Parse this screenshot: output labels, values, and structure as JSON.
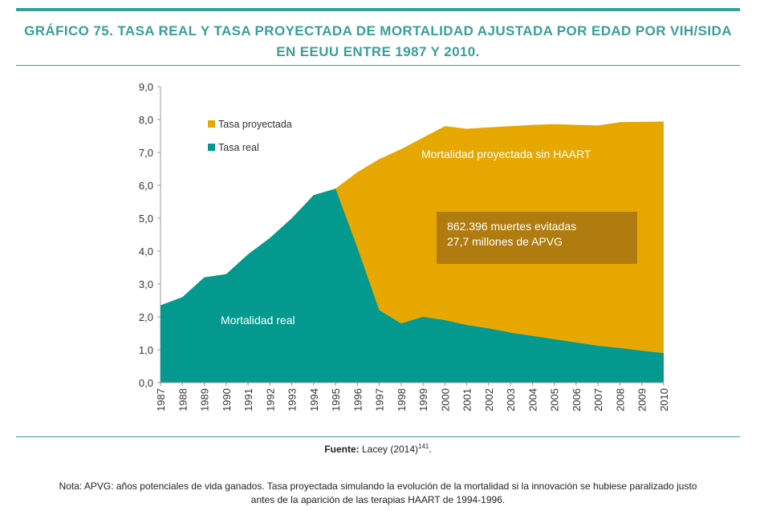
{
  "header": {
    "title_line1": "GRÁFICO 75. TASA REAL Y TASA PROYECTADA DE MORTALIDAD AJUSTADA POR EDAD POR VIH/SIDA",
    "title_line2": "EN EEUU ENTRE 1987 Y 2010."
  },
  "colors": {
    "accent": "#3a9e98",
    "real": "#03998f",
    "projected": "#e6a800",
    "callout": "#b07c10"
  },
  "chart_data": {
    "type": "area",
    "x": [
      "1987",
      "1988",
      "1989",
      "1990",
      "1991",
      "1992",
      "1993",
      "1994",
      "1995",
      "1996",
      "1997",
      "1998",
      "1999",
      "2000",
      "2001",
      "2002",
      "2003",
      "2004",
      "2005",
      "2006",
      "2007",
      "2008",
      "2009",
      "2010"
    ],
    "series": [
      {
        "name": "Tasa proyectada",
        "values": [
          2.35,
          2.6,
          3.2,
          3.3,
          3.9,
          4.4,
          5.0,
          5.7,
          5.9,
          6.4,
          6.8,
          7.1,
          7.45,
          7.8,
          7.72,
          7.76,
          7.8,
          7.84,
          7.86,
          7.84,
          7.82,
          7.92,
          7.93,
          7.94
        ]
      },
      {
        "name": "Tasa real",
        "values": [
          2.35,
          2.6,
          3.2,
          3.3,
          3.9,
          4.4,
          5.0,
          5.7,
          5.9,
          4.1,
          2.2,
          1.8,
          2.0,
          1.9,
          1.75,
          1.65,
          1.52,
          1.42,
          1.32,
          1.22,
          1.12,
          1.05,
          0.97,
          0.9
        ]
      }
    ],
    "ylim": [
      0,
      9
    ],
    "yticks": [
      "0,0",
      "1,0",
      "2,0",
      "3,0",
      "4,0",
      "5,0",
      "6,0",
      "7,0",
      "8,0",
      "9,0"
    ],
    "legend_position": "top-left",
    "annotations": {
      "projected_label": "Mortalidad proyectada sin HAART",
      "real_label": "Mortalidad real",
      "callout_line1": "862.396 muertes evitadas",
      "callout_line2": "27,7 millones de APVG"
    }
  },
  "footer": {
    "source_label": "Fuente:",
    "source_text": "Lacey (2014)",
    "source_ref": "141",
    "source_end": ".",
    "note_line1": "Nota: APVG: años potenciales de vida ganados. Tasa proyectada simulando la evolución de la mortalidad si la innovación se hubiese paralizado justo",
    "note_line2": "antes de la aparición de las terapias HAART de 1994-1996."
  }
}
